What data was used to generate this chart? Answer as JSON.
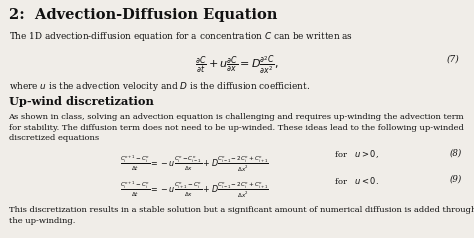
{
  "title": "2:  Advection-Diffusion Equation",
  "bg_color": "#f0ede8",
  "text_color": "#111111",
  "intro_text": "The 1D advection-diffusion equation for a concentration $C$ can be written as",
  "eq7": "$\\frac{\\partial C}{\\partial t} + u\\frac{\\partial C}{\\partial x} = D\\frac{\\partial^2 C}{\\partial x^2},$",
  "eq7_label": "(7)",
  "eq7_note": "where $u$ is the advection velocity and $D$ is the diffusion coefficient.",
  "section2": "Up-wind discretization",
  "para2": "As shown in class, solving an advection equation is challenging and requires up-winding the advection term\nfor stability. The diffusion term does not need to be up-winded. These ideas lead to the following up-winded\ndiscretized equations",
  "eq8": "$\\frac{C_i^{n+1} - C_i^n}{\\Delta t} = -u\\frac{C_i^n - C_{i-1}^n}{\\Delta x} + D\\frac{C_{i-1}^n - 2C_i^n + C_{i+1}^n}{\\Delta x^2}$",
  "eq8_cond": "for   $u > 0$,",
  "eq8_label": "(8)",
  "eq9": "$\\frac{C_i^{n+1} - C_i^n}{\\Delta t} = -u\\frac{C_{i+1}^n - C_i^n}{\\Delta x} + D\\frac{C_{i-1}^n - 2C_i^n + C_{i+1}^n}{\\Delta x^2}$",
  "eq9_cond": "for   $u < 0$.",
  "eq9_label": "(9)",
  "footer": "This discretization results in a stable solution but a significant amount of numerical diffusion is added through\nthe up-winding."
}
